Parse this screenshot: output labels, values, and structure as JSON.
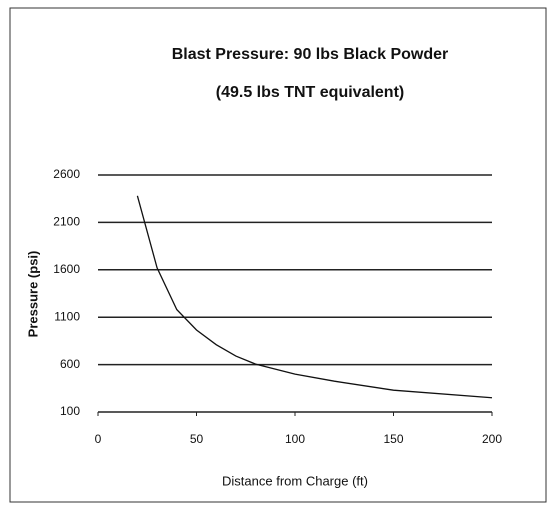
{
  "chart_data": {
    "type": "line",
    "title": "Blast Pressure: 90 lbs Black Powder",
    "subtitle": "(49.5 lbs TNT equivalent)",
    "x_label": "Distance from Charge (ft)",
    "y_label": "Pressure (psi)",
    "x": [
      20,
      30,
      40,
      50,
      60,
      70,
      80,
      100,
      120,
      150,
      200
    ],
    "series": [
      {
        "name": "Pressure",
        "color": "#111111",
        "values": [
          2380,
          1620,
          1180,
          965,
          810,
          690,
          605,
          500,
          425,
          330,
          250
        ]
      }
    ],
    "xlim": [
      0,
      200
    ],
    "xticks": [
      0,
      50,
      100,
      150,
      200
    ],
    "ylim": [
      100,
      2600
    ],
    "yticks": [
      100,
      600,
      1100,
      1600,
      2100,
      2600
    ],
    "grid": true
  }
}
